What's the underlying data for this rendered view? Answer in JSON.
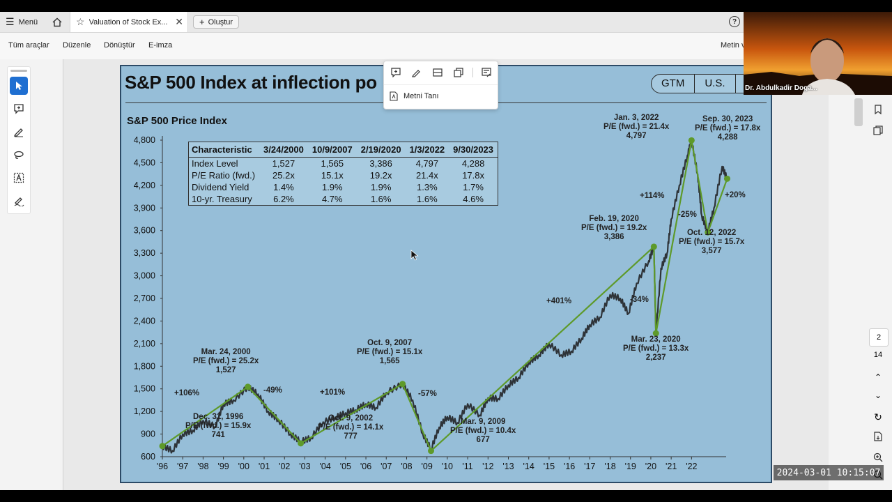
{
  "tabbar": {
    "menu_label": "Menü",
    "tab_title": "Valuation of Stock Ex...",
    "new_label": "Oluştur",
    "help_icon": "help-icon"
  },
  "menubar": {
    "items": [
      "Tüm araçlar",
      "Düzenle",
      "Dönüştür",
      "E-imza"
    ],
    "right_label": "Metin v"
  },
  "popup": {
    "ocr_label": "Metni Tanı"
  },
  "slide": {
    "title": "S&P 500 Index at inflection po",
    "badges": [
      "GTM",
      "U.S.",
      ""
    ],
    "chart_title": "S&P 500 Price Index"
  },
  "table": {
    "headers": [
      "Characteristic",
      "3/24/2000",
      "10/9/2007",
      "2/19/2020",
      "1/3/2022",
      "9/30/2023"
    ],
    "rows": [
      [
        "Index Level",
        "1,527",
        "1,565",
        "3,386",
        "4,797",
        "4,288"
      ],
      [
        "P/E Ratio (fwd.)",
        "25.2x",
        "15.1x",
        "19.2x",
        "21.4x",
        "17.8x"
      ],
      [
        "Dividend Yield",
        "1.4%",
        "1.9%",
        "1.9%",
        "1.3%",
        "1.7%"
      ],
      [
        "10-yr. Treasury",
        "6.2%",
        "4.7%",
        "1.6%",
        "1.6%",
        "4.6%"
      ]
    ]
  },
  "annotations": {
    "dec1996": "Dec. 31, 1996\nP/E (fwd.) = 15.9x\n741",
    "mar2000": "Mar. 24, 2000\nP/E (fwd.) = 25.2x\n1,527",
    "oct2002": "Oct. 9, 2002\nP/E (fwd.) = 14.1x\n777",
    "oct2007": "Oct. 9, 2007\nP/E (fwd.) = 15.1x\n1,565",
    "mar2009": "Mar. 9, 2009\nP/E (fwd.) = 10.4x\n677",
    "feb2020": "Feb. 19, 2020\nP/E (fwd.) = 19.2x\n3,386",
    "mar2020": "Mar. 23, 2020\nP/E (fwd.) = 13.3x\n2,237",
    "jan2022": "Jan. 3, 2022\nP/E (fwd.) = 21.4x\n4,797",
    "oct2022": "Oct. 12, 2022\nP/E (fwd.) = 15.7x\n3,577",
    "sep2023": "Sep. 30, 2023\nP/E (fwd.) = 17.8x\n4,288"
  },
  "pct_labels": [
    "+106%",
    "-49%",
    "+101%",
    "-57%",
    "+401%",
    "-34%",
    "+114%",
    "-25%",
    "+20%"
  ],
  "chart_data": {
    "type": "line",
    "title": "S&P 500 Price Index",
    "ylim": [
      600,
      4800
    ],
    "y_ticks": [
      "600",
      "900",
      "1,200",
      "1,500",
      "1,800",
      "2,100",
      "2,400",
      "2,700",
      "3,000",
      "3,300",
      "3,600",
      "3,900",
      "4,200",
      "4,500",
      "4,800"
    ],
    "x_ticks": [
      "'96",
      "'97",
      "'98",
      "'99",
      "'00",
      "'01",
      "'02",
      "'03",
      "'04",
      "'05",
      "'06",
      "'07",
      "'08",
      "'09",
      "'10",
      "'11",
      "'12",
      "'13",
      "'14",
      "'15",
      "'16",
      "'17",
      "'18",
      "'19",
      "'20",
      "'21",
      "'22"
    ],
    "xlim": [
      1996,
      2023.7
    ],
    "series": [
      {
        "name": "S&P 500 Price Index",
        "x": [
          1996,
          1996.5,
          1997,
          1997.5,
          1998,
          1998.6,
          1999,
          1999.5,
          2000.2,
          2000.7,
          2001.2,
          2001.7,
          2002.3,
          2002.8,
          2003.3,
          2003.9,
          2004.5,
          2005,
          2005.5,
          2006,
          2006.5,
          2007,
          2007.8,
          2008.3,
          2008.8,
          2009.2,
          2009.6,
          2010,
          2010.5,
          2011,
          2011.6,
          2012,
          2012.5,
          2013,
          2013.5,
          2014,
          2014.5,
          2015,
          2015.6,
          2016.1,
          2016.6,
          2017,
          2017.5,
          2018,
          2018.5,
          2018.9,
          2019.3,
          2019.9,
          2020.15,
          2020.25,
          2020.5,
          2020.8,
          2021,
          2021.4,
          2021.8,
          2022.0,
          2022.3,
          2022.5,
          2022.8,
          2023.1,
          2023.5,
          2023.75
        ],
        "values": [
          741,
          680,
          900,
          950,
          1080,
          1000,
          1300,
          1350,
          1527,
          1430,
          1200,
          1090,
          900,
          800,
          850,
          1060,
          1120,
          1180,
          1220,
          1300,
          1250,
          1450,
          1565,
          1350,
          900,
          700,
          990,
          1130,
          1050,
          1300,
          1150,
          1380,
          1370,
          1550,
          1650,
          1850,
          1950,
          2100,
          1950,
          2000,
          2170,
          2350,
          2450,
          2750,
          2700,
          2500,
          2900,
          3200,
          3386,
          2237,
          3100,
          3300,
          3750,
          4200,
          4600,
          4797,
          4350,
          3800,
          3577,
          3900,
          4450,
          4288
        ]
      },
      {
        "name": "",
        "x": [
          1996,
          2000.2,
          2002.8,
          2007.8,
          2009.2,
          2020.15,
          2020.25,
          2022.0,
          2022.8,
          2023.75
        ],
        "values": [
          741,
          1527,
          777,
          1565,
          677,
          3386,
          2237,
          4797,
          3577,
          4288
        ]
      }
    ]
  },
  "webcam": {
    "name": "Dr. Abdulkadir Doga..."
  },
  "right_rail": {
    "page_current": "2",
    "page_total": "14"
  },
  "timestamp": "2024-03-01  10:15:07"
}
